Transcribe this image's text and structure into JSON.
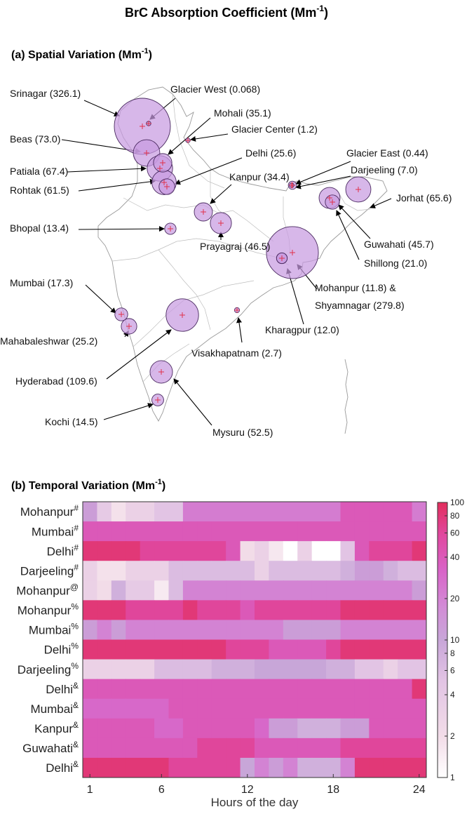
{
  "figure": {
    "title_main": "BrC Absorption Coefficient (Mm",
    "title_sup": "-1",
    "title_close": ")"
  },
  "chart_data": [
    {
      "type": "scatter",
      "subtype": "bubble-map",
      "title": "(a) Spatial Variation (Mm",
      "title_sup": "-1",
      "title_close": ")",
      "units": "Mm-1",
      "sites": [
        {
          "name": "Srinagar",
          "value": 326.1,
          "label": "Srinagar (326.1)"
        },
        {
          "name": "Glacier West",
          "value": 0.068,
          "label": "Glacier West (0.068)"
        },
        {
          "name": "Mohali",
          "value": 35.1,
          "label": "Mohali (35.1)"
        },
        {
          "name": "Glacier Center",
          "value": 1.2,
          "label": "Glacier Center (1.2)"
        },
        {
          "name": "Beas",
          "value": 73.0,
          "label": "Beas (73.0)"
        },
        {
          "name": "Delhi",
          "value": 25.6,
          "label": "Delhi (25.6)"
        },
        {
          "name": "Patiala",
          "value": 67.4,
          "label": "Patiala (67.4)"
        },
        {
          "name": "Glacier East",
          "value": 0.44,
          "label": "Glacier East (0.44)"
        },
        {
          "name": "Darjeeling",
          "value": 7.0,
          "label": "Darjeeling (7.0)"
        },
        {
          "name": "Kanpur",
          "value": 34.4,
          "label": "Kanpur (34.4)"
        },
        {
          "name": "Rohtak",
          "value": 61.5,
          "label": "Rohtak (61.5)"
        },
        {
          "name": "Jorhat",
          "value": 65.6,
          "label": "Jorhat (65.6)"
        },
        {
          "name": "Bhopal",
          "value": 13.4,
          "label": "Bhopal (13.4)"
        },
        {
          "name": "Guwahati",
          "value": 45.7,
          "label": "Guwahati (45.7)"
        },
        {
          "name": "Prayagraj",
          "value": 46.5,
          "label": "Prayagraj (46.5)"
        },
        {
          "name": "Shillong",
          "value": 21.0,
          "label": "Shillong (21.0)"
        },
        {
          "name": "Mumbai",
          "value": 17.3,
          "label": "Mumbai (17.3)"
        },
        {
          "name": "Mohanpur",
          "value": 11.8,
          "label": "Mohanpur (11.8) &"
        },
        {
          "name": "Shyamnagar",
          "value": 279.8,
          "label": "Shyamnagar (279.8)"
        },
        {
          "name": "Mahabaleshwar",
          "value": 25.2,
          "label": "Mahabaleshwar (25.2)"
        },
        {
          "name": "Kharagpur",
          "value": 12.0,
          "label": "Kharagpur (12.0)"
        },
        {
          "name": "Visakhapatnam",
          "value": 2.7,
          "label": "Visakhapatnam (2.7)"
        },
        {
          "name": "Hyderabad",
          "value": 109.6,
          "label": "Hyderabad (109.6)"
        },
        {
          "name": "Kochi",
          "value": 14.5,
          "label": "Kochi (14.5)"
        },
        {
          "name": "Mysuru",
          "value": 52.5,
          "label": "Mysuru (52.5)"
        }
      ]
    },
    {
      "type": "heatmap",
      "title": "(b) Temporal Variation (Mm",
      "title_sup": "-1",
      "title_close": ")",
      "xlabel": "Hours of the day",
      "x_ticks": [
        "1",
        "6",
        "12",
        "18",
        "24"
      ],
      "x_tick_values": [
        1,
        6,
        12,
        18,
        24
      ],
      "x": [
        1,
        2,
        3,
        4,
        5,
        6,
        7,
        8,
        9,
        10,
        11,
        12,
        13,
        14,
        15,
        16,
        17,
        18,
        19,
        20,
        21,
        22,
        23,
        24
      ],
      "colorbar": {
        "scale": "log",
        "range": [
          1,
          100
        ],
        "ticks": [
          "1",
          "2",
          "4",
          "6",
          "8",
          "10",
          "20",
          "40",
          "60",
          "80",
          "100"
        ],
        "tick_values": [
          1,
          2,
          4,
          6,
          8,
          10,
          20,
          40,
          60,
          80,
          100
        ]
      },
      "rows": [
        {
          "site": "Mohanpur",
          "mark": "#",
          "values": [
            12,
            4,
            1.8,
            3,
            3,
            5,
            5,
            22,
            22,
            22,
            22,
            22,
            22,
            22,
            22,
            22,
            22,
            22,
            40,
            40,
            40,
            40,
            40,
            22
          ]
        },
        {
          "site": "Mumbai",
          "mark": "#",
          "values": [
            40,
            40,
            40,
            40,
            40,
            40,
            40,
            40,
            40,
            40,
            40,
            40,
            40,
            40,
            40,
            40,
            40,
            40,
            40,
            40,
            40,
            40,
            40,
            40
          ]
        },
        {
          "site": "Delhi",
          "mark": "#",
          "values": [
            80,
            80,
            80,
            80,
            60,
            60,
            60,
            60,
            60,
            60,
            40,
            2,
            3,
            1.6,
            1,
            3,
            1,
            1,
            5,
            40,
            60,
            60,
            60,
            80
          ]
        },
        {
          "site": "Darjeeling",
          "mark": "#",
          "values": [
            3,
            1.8,
            1.8,
            3,
            3,
            3,
            6,
            6,
            6,
            6,
            6,
            6,
            3,
            6,
            6,
            6,
            6,
            6,
            8,
            12,
            12,
            8,
            6,
            6
          ]
        },
        {
          "site": "Mohanpur",
          "mark": "@",
          "values": [
            3,
            2,
            8,
            4,
            4,
            1.5,
            6,
            20,
            20,
            20,
            20,
            20,
            20,
            20,
            20,
            20,
            20,
            20,
            20,
            20,
            20,
            20,
            20,
            12
          ]
        },
        {
          "site": "Mohanpur",
          "mark": "%",
          "values": [
            80,
            80,
            80,
            60,
            60,
            60,
            60,
            80,
            60,
            60,
            60,
            40,
            60,
            60,
            60,
            60,
            60,
            60,
            80,
            80,
            80,
            80,
            80,
            80
          ]
        },
        {
          "site": "Mumbai",
          "mark": "%",
          "values": [
            12,
            20,
            12,
            20,
            20,
            20,
            20,
            20,
            20,
            20,
            20,
            20,
            20,
            20,
            12,
            12,
            12,
            12,
            20,
            20,
            20,
            20,
            20,
            20
          ]
        },
        {
          "site": "Delhi",
          "mark": "%",
          "values": [
            80,
            80,
            80,
            80,
            80,
            80,
            80,
            80,
            80,
            80,
            60,
            60,
            60,
            40,
            40,
            40,
            40,
            60,
            80,
            80,
            80,
            80,
            80,
            80
          ]
        },
        {
          "site": "Darjeeling",
          "mark": "%",
          "values": [
            3,
            3,
            3,
            3,
            3,
            6,
            6,
            6,
            6,
            8,
            8,
            8,
            10,
            10,
            10,
            10,
            10,
            8,
            8,
            5,
            5,
            3,
            5,
            5
          ]
        },
        {
          "site": "Delhi",
          "mark": "&",
          "values": [
            40,
            40,
            40,
            40,
            40,
            40,
            40,
            40,
            40,
            40,
            40,
            40,
            40,
            40,
            40,
            40,
            40,
            40,
            40,
            40,
            40,
            40,
            40,
            80
          ]
        },
        {
          "site": "Mumbai",
          "mark": "&",
          "values": [
            30,
            30,
            30,
            30,
            30,
            30,
            40,
            40,
            40,
            40,
            40,
            40,
            40,
            40,
            40,
            40,
            40,
            40,
            40,
            40,
            40,
            40,
            40,
            40
          ]
        },
        {
          "site": "Kanpur",
          "mark": "&",
          "values": [
            40,
            40,
            40,
            40,
            40,
            30,
            30,
            40,
            40,
            40,
            40,
            40,
            30,
            12,
            12,
            8,
            8,
            8,
            12,
            12,
            40,
            40,
            40,
            40
          ]
        },
        {
          "site": "Guwahati",
          "mark": "&",
          "values": [
            40,
            40,
            40,
            40,
            40,
            40,
            40,
            40,
            60,
            60,
            60,
            60,
            40,
            40,
            40,
            40,
            40,
            40,
            60,
            60,
            60,
            60,
            60,
            60
          ]
        },
        {
          "site": "Delhi",
          "mark": "&",
          "values": [
            80,
            80,
            80,
            80,
            80,
            80,
            60,
            60,
            60,
            60,
            60,
            10,
            20,
            12,
            20,
            8,
            8,
            8,
            20,
            80,
            80,
            80,
            80,
            80
          ]
        }
      ]
    }
  ]
}
